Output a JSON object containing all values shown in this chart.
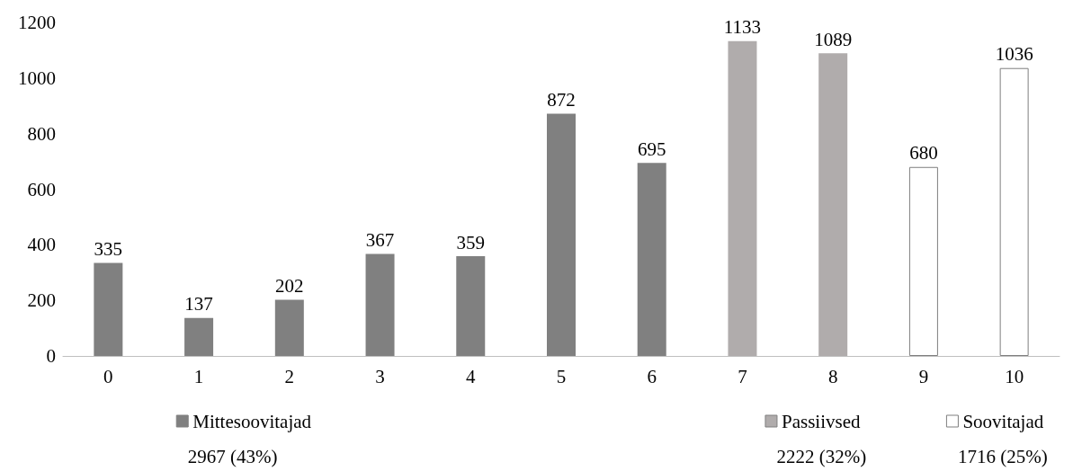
{
  "chart_data": {
    "type": "bar",
    "categories": [
      "0",
      "1",
      "2",
      "3",
      "4",
      "5",
      "6",
      "7",
      "8",
      "9",
      "10"
    ],
    "series": [
      {
        "name": "Mittesoovitajad",
        "color": "#808080",
        "values": [
          335,
          137,
          202,
          367,
          359,
          872,
          695,
          null,
          null,
          null,
          null
        ]
      },
      {
        "name": "Passiivsed",
        "color": "#b0acac",
        "values": [
          null,
          null,
          null,
          null,
          null,
          null,
          null,
          1133,
          1089,
          null,
          null
        ]
      },
      {
        "name": "Soovitajad",
        "color": "#ffffff",
        "values": [
          null,
          null,
          null,
          null,
          null,
          null,
          null,
          null,
          null,
          680,
          1036
        ]
      }
    ],
    "annotations": [
      "2967 (43%)",
      "2222 (32%)",
      "1716 (25%)"
    ],
    "ylim": [
      0,
      1200
    ],
    "yticks": [
      0,
      200,
      400,
      600,
      800,
      1000,
      1200
    ],
    "data_labels": true,
    "grid": false,
    "legend": "bottom"
  }
}
